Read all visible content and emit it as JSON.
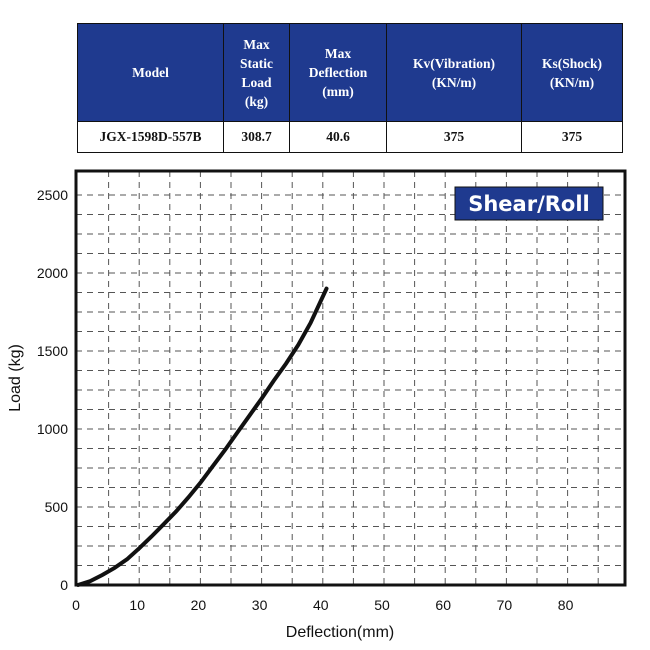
{
  "table": {
    "headers": [
      [
        "Max",
        "Static",
        "Load",
        "(kg)"
      ],
      [
        "Max",
        "Deflection",
        "(mm)"
      ],
      [
        "Kv(Vibration)",
        "(KN/m)"
      ],
      [
        "Ks(Shock)",
        "(KN/m)"
      ]
    ],
    "model_header": "Model",
    "row": {
      "model": "JGX-1598D-557B",
      "max_static_load": "308.7",
      "max_deflection": "40.6",
      "kv": "375",
      "ks": "375"
    }
  },
  "chart_data": {
    "type": "line",
    "title": "",
    "badge": "Shear/Roll",
    "xlabel": "Deflection(mm)",
    "ylabel": "Load (kg)",
    "xlim": [
      0,
      90
    ],
    "ylim": [
      0,
      2600
    ],
    "x_ticks": [
      "0",
      "10",
      "20",
      "30",
      "40",
      "50",
      "60",
      "70",
      "80"
    ],
    "y_ticks": [
      "0",
      "500",
      "1000",
      "1500",
      "2000",
      "2500"
    ],
    "grid": true,
    "colors": {
      "line": "#111111",
      "badge_bg": "#1f3a8f",
      "header_bg": "#1f3a8f"
    },
    "series": [
      {
        "x": [
          0,
          2,
          4,
          6,
          8,
          10,
          12,
          14,
          16,
          18,
          20,
          22,
          24,
          26,
          28,
          30,
          32,
          34,
          36,
          38,
          40.6
        ],
        "values": [
          0,
          25,
          65,
          110,
          165,
          235,
          310,
          390,
          470,
          560,
          655,
          760,
          865,
          975,
          1085,
          1195,
          1310,
          1420,
          1540,
          1680,
          1900
        ]
      }
    ]
  }
}
